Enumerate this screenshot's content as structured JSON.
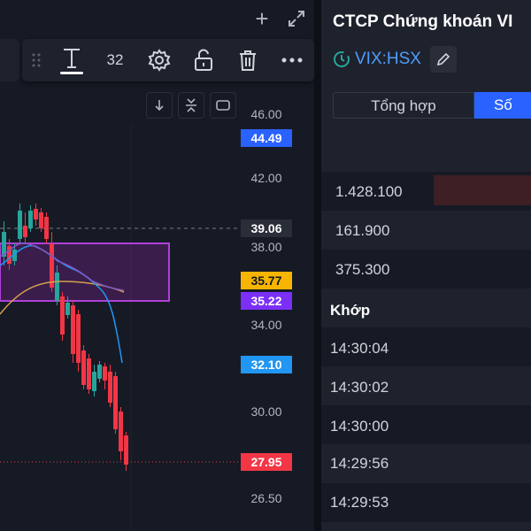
{
  "chart": {
    "header_icons": [
      "plus-icon",
      "expand-icon"
    ],
    "toolbar": {
      "text_tool_icon": "text-icon",
      "font_size": "32",
      "settings_icon": "gear-icon",
      "lock_icon": "unlock-icon",
      "delete_icon": "trash-icon",
      "more_icon": "more-icon"
    },
    "controls": [
      "arrow-down-icon",
      "collapse-icon",
      "reset-icon"
    ],
    "price_axis": [
      "46.00",
      "42.00",
      "38.00",
      "34.00",
      "30.00",
      "26.50"
    ],
    "price_tags": [
      {
        "value": "44.49",
        "color": "#2962ff",
        "text_color": "#ffffff"
      },
      {
        "value": "39.06",
        "color": "#2a2e39",
        "text_color": "#ffffff"
      },
      {
        "value": "35.77",
        "color": "#f7b500",
        "text_color": "#131722"
      },
      {
        "value": "35.22",
        "color": "#7b2ff7",
        "text_color": "#ffffff"
      },
      {
        "value": "32.10",
        "color": "#2196f3",
        "text_color": "#ffffff"
      },
      {
        "value": "27.95",
        "color": "#f23645",
        "text_color": "#ffffff"
      }
    ],
    "colors": {
      "up": "#26a69a",
      "down": "#f23645",
      "zone": "#9c27b0"
    }
  },
  "panel": {
    "title": "CTCP Chứng khoán VI",
    "symbol": "VIX:HSX",
    "tabs": [
      "Tổng hợp",
      "Số"
    ],
    "volume_rows": [
      "1.428.100",
      "161.900",
      "375.300"
    ],
    "section_label": "Khớp",
    "times": [
      "14:30:04",
      "14:30:02",
      "14:30:00",
      "14:29:56",
      "14:29:53"
    ]
  }
}
